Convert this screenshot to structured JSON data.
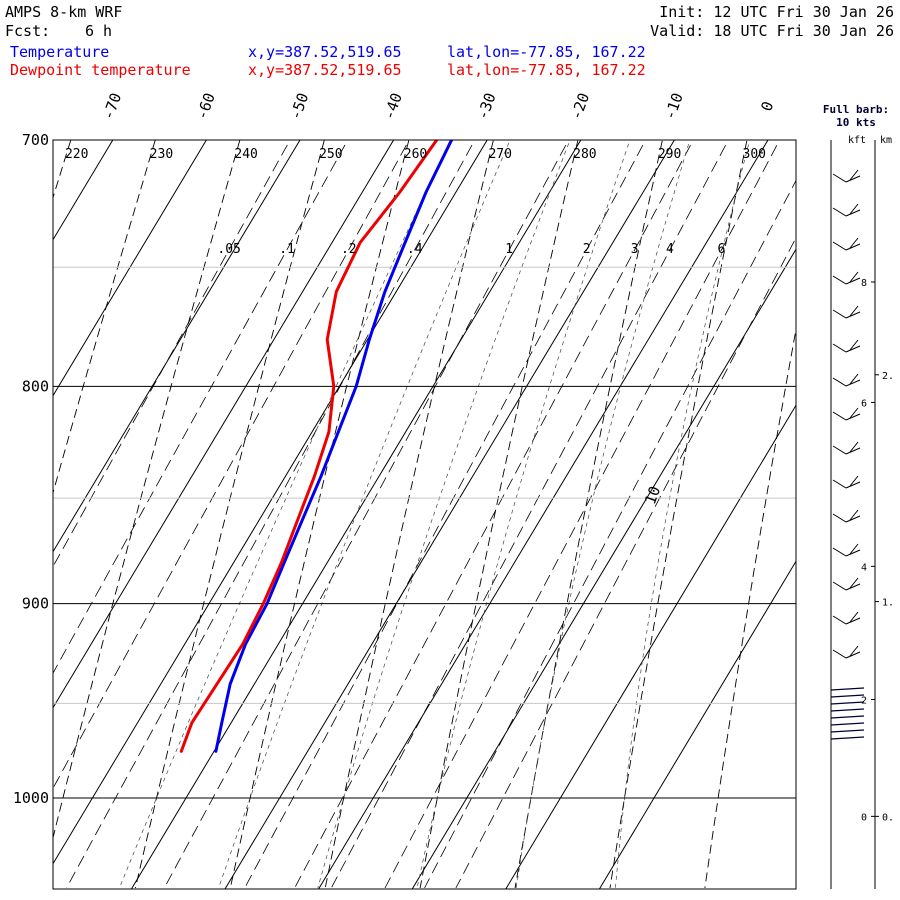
{
  "header": {
    "model": "AMPS 8-km WRF",
    "fcst_label": "Fcst:",
    "fcst_value": "6 h",
    "init": "Init: 12 UTC Fri 30 Jan 26",
    "valid": "Valid: 18 UTC Fri 30 Jan 26",
    "series1_label": "Temperature",
    "series1_coords": "x,y=387.52,519.65",
    "series1_latlon": "lat,lon=-77.85, 167.22",
    "series2_label": "Dewpoint temperature",
    "series2_coords": "x,y=387.52,519.65",
    "series2_latlon": "lat,lon=-77.85, 167.22"
  },
  "barb_legend": {
    "line1": "Full barb:",
    "line2": "10 kts"
  },
  "height_axis": {
    "kft_label": "kft",
    "km_label": "km",
    "kft_ticks": [
      {
        "label": "0",
        "p": 1010
      },
      {
        "label": "2",
        "p": 948
      },
      {
        "label": "4",
        "p": 882
      },
      {
        "label": "6",
        "p": 807
      },
      {
        "label": "8",
        "p": 756
      }
    ],
    "km_ticks": [
      {
        "label": "0.",
        "p": 1010
      },
      {
        "label": "1.",
        "p": 899
      },
      {
        "label": "2.",
        "p": 795
      }
    ]
  },
  "colors": {
    "temperature": "#0000ee",
    "dewpoint": "#ee0000",
    "isobar": "#000000",
    "minor_isobar": "#c8c8c8"
  },
  "chart_data": {
    "type": "line",
    "diagram": "Skew-T log-P",
    "ylabel_units": "hPa",
    "pressure_range": [
      1040,
      700
    ],
    "isobars_labeled": [
      700,
      800,
      900,
      1000
    ],
    "isobars_minor": [
      750,
      850,
      950
    ],
    "isotherm_labels": [
      "-70",
      "-60",
      "-50",
      "-40",
      "-30",
      "-20",
      "-10",
      "0",
      "10"
    ],
    "isotherm_values": [
      -70,
      -60,
      -50,
      -40,
      -30,
      -20,
      -10,
      0,
      10
    ],
    "theta_labels": [
      "220",
      "230",
      "240",
      "250",
      "260",
      "270",
      "280",
      "290",
      "300"
    ],
    "theta_values": [
      220,
      230,
      240,
      250,
      260,
      270,
      280,
      290,
      300
    ],
    "mixing_ratio_labels": [
      ".05",
      ".1",
      ".2",
      ".4",
      "1",
      "2",
      "3",
      "4",
      "6"
    ],
    "mixing_ratio_values": [
      0.05,
      0.1,
      0.2,
      0.4,
      1,
      2,
      3,
      4,
      6
    ],
    "series": [
      {
        "name": "Temperature",
        "p": [
          975,
          960,
          940,
          920,
          900,
          880,
          860,
          840,
          820,
          800,
          780,
          760,
          740,
          720,
          700
        ],
        "t": [
          -19.8,
          -21.0,
          -22.6,
          -23.5,
          -23.8,
          -24.6,
          -25.4,
          -26.2,
          -27.2,
          -28.2,
          -29.8,
          -31.2,
          -32.2,
          -33.2,
          -33.8
        ]
      },
      {
        "name": "Dewpoint temperature",
        "p": [
          975,
          960,
          940,
          920,
          900,
          880,
          860,
          840,
          820,
          800,
          780,
          760,
          740,
          720,
          700
        ],
        "t": [
          -23.5,
          -24.2,
          -24.0,
          -23.8,
          -24.2,
          -24.9,
          -25.9,
          -26.9,
          -28.2,
          -30.6,
          -34.3,
          -36.4,
          -37.0,
          -36.0,
          -35.4
        ]
      }
    ]
  }
}
